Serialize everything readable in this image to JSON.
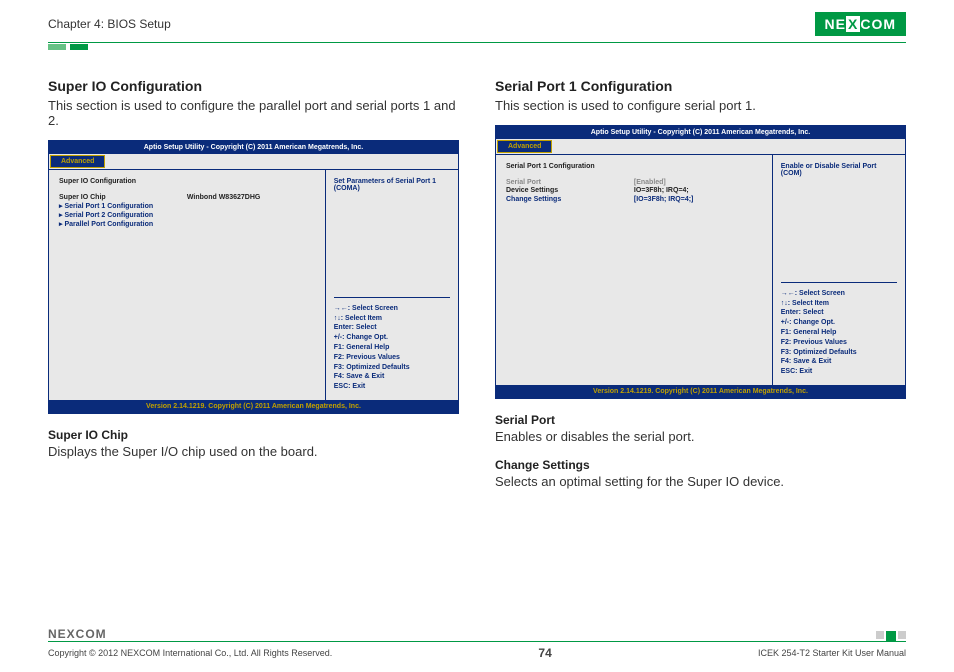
{
  "header": {
    "chapter": "Chapter 4: BIOS Setup",
    "logo_left": "NE",
    "logo_x": "X",
    "logo_right": "COM"
  },
  "left": {
    "title": "Super IO Configuration",
    "desc": "This section is used to configure the parallel port and serial ports 1 and 2.",
    "bios": {
      "top": "Aptio Setup Utility - Copyright (C) 2011 American Megatrends, Inc.",
      "tab": "Advanced",
      "heading": "Super IO Configuration",
      "rows": [
        {
          "label": "Super IO Chip",
          "value": "Winbond W83627DHG",
          "label_cls": "",
          "value_cls": ""
        },
        {
          "label": "▸ Serial Port 1 Configuration",
          "value": "",
          "label_cls": "bios-label-blue",
          "value_cls": ""
        },
        {
          "label": "▸ Serial Port 2 Configuration",
          "value": "",
          "label_cls": "bios-label-blue",
          "value_cls": ""
        },
        {
          "label": "▸ Parallel Port Configuration",
          "value": "",
          "label_cls": "bios-label-blue",
          "value_cls": ""
        }
      ],
      "side_top": "Set Parameters of Serial Port 1 (COMA)",
      "help": "→←: Select Screen\n↑↓: Select Item\nEnter: Select\n+/-: Change Opt.\nF1: General Help\nF2: Previous Values\nF3: Optimized Defaults\nF4: Save & Exit\nESC: Exit",
      "bottom": "Version 2.14.1219. Copyright (C) 2011 American Megatrends, Inc."
    },
    "field1_title": "Super IO Chip",
    "field1_desc": "Displays the Super I/O chip used on the board."
  },
  "right": {
    "title": "Serial Port 1 Configuration",
    "desc": "This section is used to configure serial port 1.",
    "bios": {
      "top": "Aptio Setup Utility - Copyright (C) 2011 American Megatrends, Inc.",
      "tab": "Advanced",
      "heading": "Serial Port 1 Configuration",
      "rows": [
        {
          "label": "Serial Port",
          "value": "[Enabled]",
          "label_cls": "bios-label-grey",
          "value_cls": "bios-value-grey"
        },
        {
          "label": "Device Settings",
          "value": "IO=3F8h; IRQ=4;",
          "label_cls": "",
          "value_cls": ""
        },
        {
          "label": "",
          "value": "",
          "label_cls": "",
          "value_cls": ""
        },
        {
          "label": "Change Settings",
          "value": "[IO=3F8h; IRQ=4;]",
          "label_cls": "bios-label-blue",
          "value_cls": "bios-value-blue"
        }
      ],
      "side_top": "Enable or Disable Serial Port (COM)",
      "help": "→←: Select Screen\n↑↓: Select Item\nEnter: Select\n+/-: Change Opt.\nF1: General Help\nF2: Previous Values\nF3: Optimized Defaults\nF4: Save & Exit\nESC: Exit",
      "bottom": "Version 2.14.1219. Copyright (C) 2011 American Megatrends, Inc."
    },
    "field1_title": "Serial Port",
    "field1_desc": "Enables or disables the serial port.",
    "field2_title": "Change Settings",
    "field2_desc": "Selects an optimal setting for the Super IO device."
  },
  "footer": {
    "logo": "NEXCOM",
    "copyright": "Copyright © 2012 NEXCOM International Co., Ltd. All Rights Reserved.",
    "page": "74",
    "manual": "ICEK 254-T2 Starter Kit User Manual"
  }
}
